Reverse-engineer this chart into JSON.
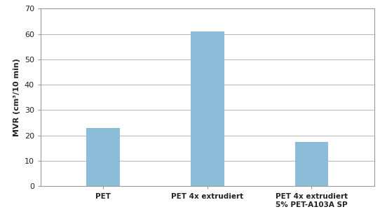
{
  "categories": [
    "PET",
    "PET 4x extrudiert",
    "PET 4x extrudiert\n5% PET-A103A SP"
  ],
  "values": [
    23,
    61,
    17.5
  ],
  "bar_color": "#8BBDD9",
  "ylabel": "MVR (cm³/10 min)",
  "ylim": [
    0,
    70
  ],
  "yticks": [
    0,
    10,
    20,
    30,
    40,
    50,
    60,
    70
  ],
  "background_color": "#ffffff",
  "grid_color": "#aaaaaa",
  "ylabel_fontsize": 8,
  "tick_fontsize": 8,
  "xtick_fontsize": 7.5,
  "bar_width": 0.32,
  "spine_color": "#999999",
  "font_color": "#222222"
}
